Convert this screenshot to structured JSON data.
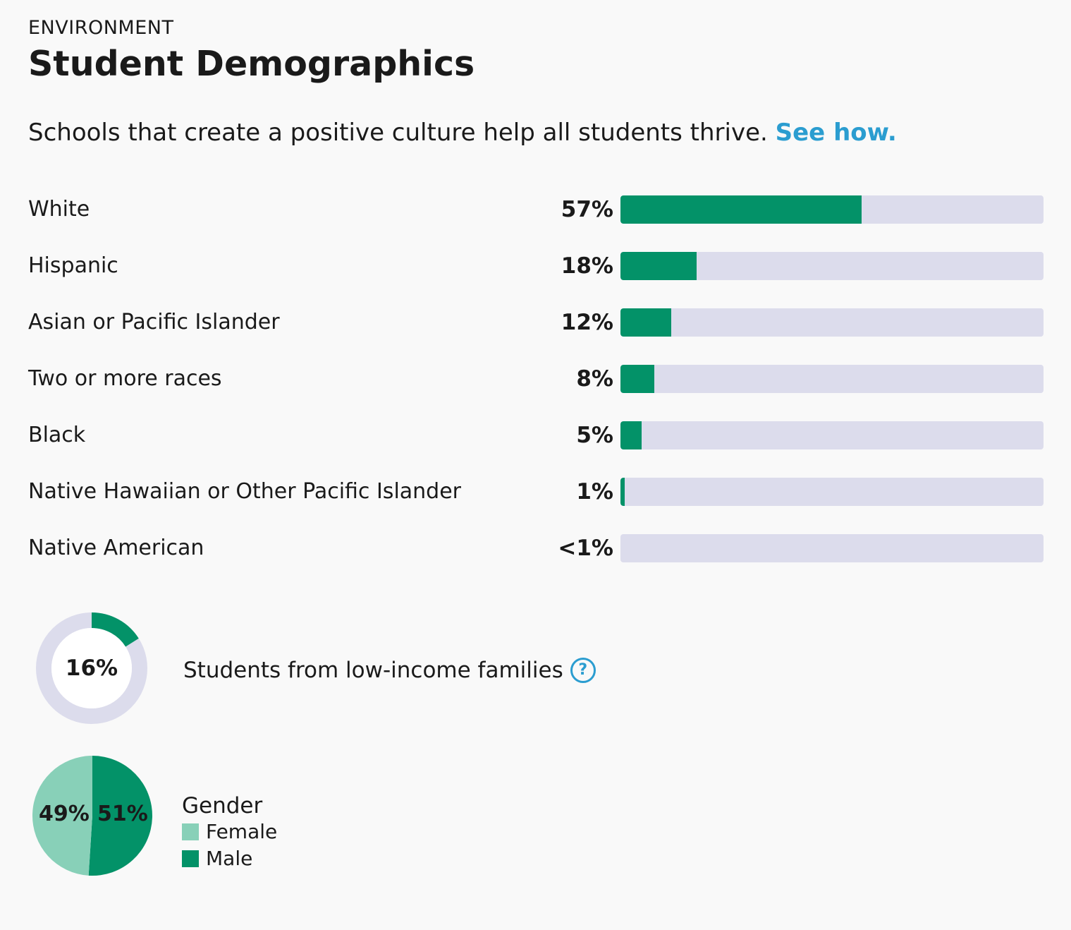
{
  "header": {
    "eyebrow": "ENVIRONMENT",
    "title": "Student Demographics",
    "intro": "Schools that create a positive culture help all students thrive.",
    "intro_link": "See how."
  },
  "colors": {
    "bar": "#039268",
    "track": "#dcdcec",
    "female": "#88d0b8",
    "male": "#039268",
    "link": "#2b9dd0"
  },
  "chart_data": [
    {
      "type": "bar",
      "orientation": "horizontal",
      "categories": [
        "White",
        "Hispanic",
        "Asian or Pacific Islander",
        "Two or more races",
        "Black",
        "Native Hawaiian or Other Pacific Islander",
        "Native American"
      ],
      "values": [
        57,
        18,
        12,
        8,
        5,
        1,
        0
      ],
      "value_labels": [
        "57%",
        "18%",
        "12%",
        "8%",
        "5%",
        "1%",
        "<1%"
      ],
      "xlim": [
        0,
        100
      ]
    },
    {
      "type": "pie",
      "style": "donut",
      "label": "Students from low-income families",
      "value": 16,
      "value_label": "16%"
    },
    {
      "type": "pie",
      "title": "Gender",
      "categories": [
        "Female",
        "Male"
      ],
      "values": [
        49,
        51
      ],
      "value_labels": [
        "49%",
        "51%"
      ]
    }
  ],
  "icons": {
    "help": "question-circle-icon",
    "help_glyph": "?"
  }
}
